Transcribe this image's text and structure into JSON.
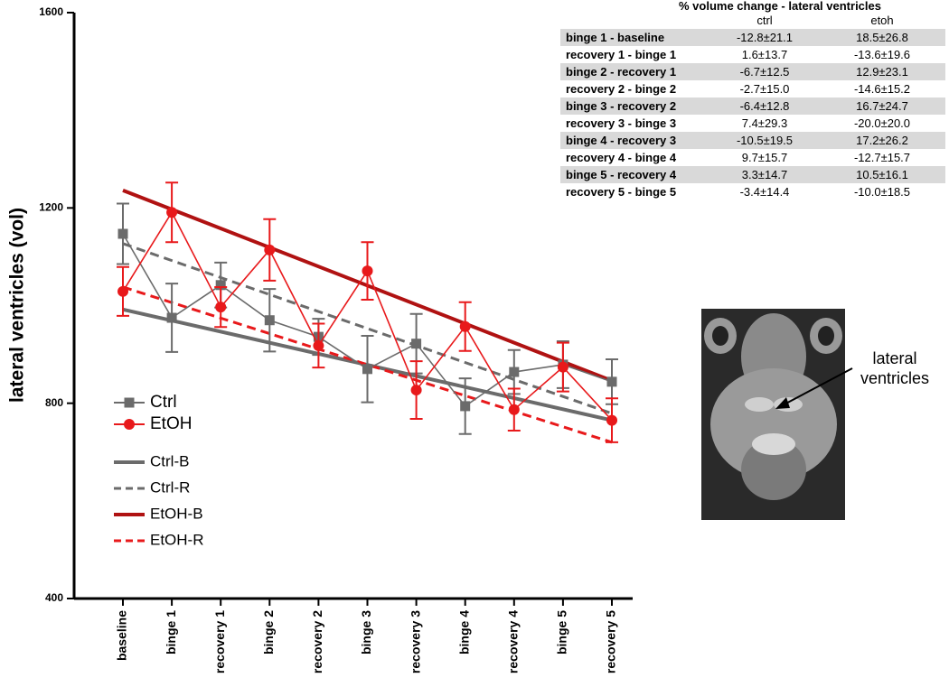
{
  "chart_data": {
    "type": "line",
    "ylabel": "lateral ventricles (vol)",
    "categories": [
      "baseline",
      "binge 1",
      "recovery 1",
      "binge 2",
      "recovery 2",
      "binge 3",
      "recovery 3",
      "binge 4",
      "recovery 4",
      "binge 5",
      "recovery 5"
    ],
    "ylim": [
      400,
      1600
    ],
    "yticks": [
      400,
      800,
      1200,
      1600
    ],
    "series": [
      {
        "name": "Ctrl",
        "color": "#6b6b6b",
        "marker": "square",
        "values": [
          1147,
          975,
          1042,
          970,
          936,
          870,
          922,
          794,
          864,
          879,
          844
        ],
        "errors": [
          62,
          70,
          46,
          64,
          37,
          68,
          61,
          57,
          45,
          48,
          46
        ]
      },
      {
        "name": "EtOH",
        "color": "#e8191b",
        "marker": "circle",
        "values": [
          1029,
          1191,
          997,
          1114,
          918,
          1071,
          827,
          957,
          787,
          874,
          765
        ],
        "errors": [
          50,
          61,
          41,
          63,
          45,
          59,
          59,
          50,
          43,
          50,
          45
        ]
      }
    ],
    "trend_lines": [
      {
        "name": "Ctrl-B",
        "color": "#6b6b6b",
        "dashed": false,
        "values": [
          992,
          765
        ]
      },
      {
        "name": "Ctrl-R",
        "color": "#6b6b6b",
        "dashed": true,
        "values": [
          1127,
          779
        ]
      },
      {
        "name": "EtOH-B",
        "color": "#b01212",
        "dashed": false,
        "values": [
          1236,
          846
        ]
      },
      {
        "name": "EtOH-R",
        "color": "#e8191b",
        "dashed": true,
        "values": [
          1038,
          720
        ]
      }
    ]
  },
  "table": {
    "title": "% volume change - lateral ventricles",
    "columns": [
      "ctrl",
      "etoh"
    ],
    "rows": [
      [
        "binge 1 - baseline",
        "-12.8±21.1",
        "18.5±26.8"
      ],
      [
        "recovery 1 - binge 1",
        "1.6±13.7",
        "-13.6±19.6"
      ],
      [
        "binge 2 - recovery 1",
        "-6.7±12.5",
        "12.9±23.1"
      ],
      [
        "recovery 2 - binge 2",
        "-2.7±15.0",
        "-14.6±15.2"
      ],
      [
        "binge 3 - recovery 2",
        "-6.4±12.8",
        "16.7±24.7"
      ],
      [
        "recovery 3 - binge 3",
        "7.4±29.3",
        "-20.0±20.0"
      ],
      [
        "binge 4 - recovery 3",
        "-10.5±19.5",
        "17.2±26.2"
      ],
      [
        "recovery 4 - binge 4",
        "9.7±15.7",
        "-12.7±15.7"
      ],
      [
        "binge 5 - recovery 4",
        "3.3±14.7",
        "10.5±16.1"
      ],
      [
        "recovery 5 - binge 5",
        "-3.4±14.4",
        "-10.0±18.5"
      ]
    ]
  },
  "image": {
    "label": "lateral ventricles"
  }
}
